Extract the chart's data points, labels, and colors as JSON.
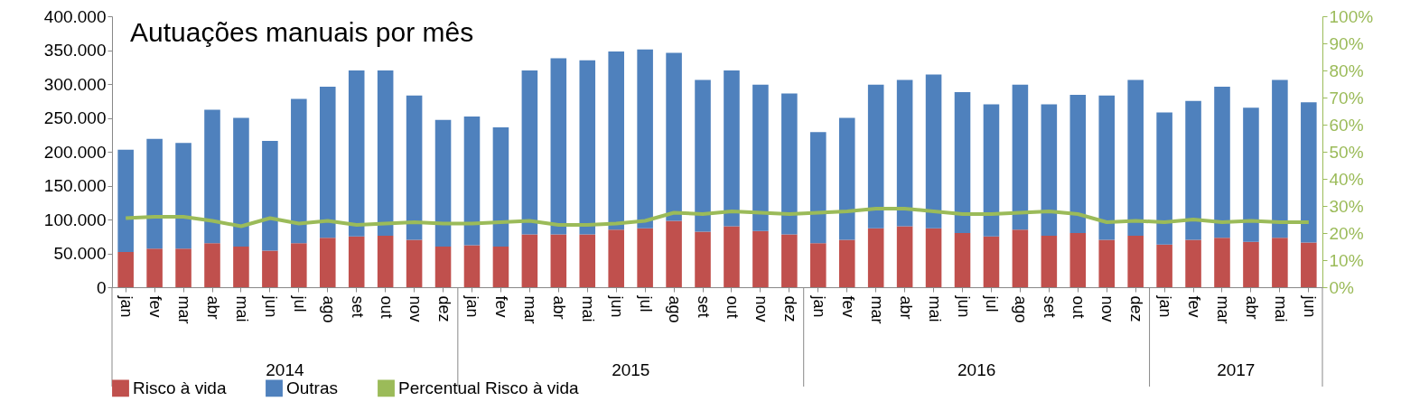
{
  "chart_data": {
    "type": "bar",
    "stacked": true,
    "title": "Autuações manuais por mês",
    "categories": [
      "jan",
      "fev",
      "mar",
      "abr",
      "mai",
      "jun",
      "jul",
      "ago",
      "set",
      "out",
      "nov",
      "dez",
      "jan",
      "fev",
      "mar",
      "abr",
      "mai",
      "jun",
      "jul",
      "ago",
      "set",
      "out",
      "nov",
      "dez",
      "jan",
      "fev",
      "mar",
      "abr",
      "mai",
      "jun",
      "jul",
      "ago",
      "set",
      "out",
      "nov",
      "dez",
      "jan",
      "fev",
      "mar",
      "abr",
      "mai",
      "jun"
    ],
    "annotations": [
      "2014",
      "2015",
      "2016",
      "2017"
    ],
    "series": [
      {
        "name": "Risco à vida",
        "color": "#c0504d",
        "values": [
          52000,
          57000,
          57000,
          65000,
          60000,
          54000,
          65000,
          73000,
          75000,
          76000,
          70000,
          60000,
          62000,
          60000,
          78000,
          78000,
          78000,
          85000,
          87000,
          98000,
          82000,
          90000,
          83000,
          78000,
          65000,
          70000,
          87000,
          90000,
          87000,
          80000,
          75000,
          85000,
          76000,
          80000,
          70000,
          76000,
          63000,
          70000,
          73000,
          67000,
          73000,
          66000
        ]
      },
      {
        "name": "Outras",
        "color": "#4f81bd",
        "values": [
          151000,
          162000,
          156000,
          197000,
          190000,
          162000,
          213000,
          223000,
          245000,
          244000,
          213000,
          187000,
          190000,
          176000,
          242000,
          260000,
          257000,
          263000,
          264000,
          248000,
          224000,
          230000,
          216000,
          208000,
          164000,
          180000,
          212000,
          216000,
          227000,
          208000,
          195000,
          214000,
          194000,
          204000,
          213000,
          230000,
          195000,
          205000,
          223000,
          198000,
          233000,
          207000
        ]
      },
      {
        "name": "Percentual Risco à vida",
        "type": "line",
        "axis": "y2",
        "color": "#9bbb59",
        "values": [
          25.5,
          26,
          26,
          24.5,
          22.5,
          25.5,
          23.5,
          24.5,
          23,
          23.5,
          24,
          23.5,
          23.5,
          24,
          24.5,
          23,
          23,
          23.5,
          24.5,
          27.5,
          27,
          28,
          27.5,
          27,
          27.5,
          28,
          29,
          29,
          28,
          27,
          27,
          27.5,
          28,
          27,
          24,
          24.5,
          24,
          25,
          24,
          24.5,
          24,
          24
        ]
      }
    ],
    "ylim": [
      0,
      400000
    ],
    "yticks": [
      {
        "value": 0,
        "label": "0"
      },
      {
        "value": 50000,
        "label": "50.000"
      },
      {
        "value": 100000,
        "label": "100.000"
      },
      {
        "value": 150000,
        "label": "150.000"
      },
      {
        "value": 200000,
        "label": "200.000"
      },
      {
        "value": 250000,
        "label": "250.000"
      },
      {
        "value": 300000,
        "label": "300.000"
      },
      {
        "value": 350000,
        "label": "350.000"
      },
      {
        "value": 400000,
        "label": "400.000"
      }
    ],
    "y2lim": [
      0,
      100
    ],
    "y2ticks": [
      {
        "value": 0,
        "label": "0%"
      },
      {
        "value": 10,
        "label": "10%"
      },
      {
        "value": 20,
        "label": "20%"
      },
      {
        "value": 30,
        "label": "30%"
      },
      {
        "value": 40,
        "label": "40%"
      },
      {
        "value": 50,
        "label": "50%"
      },
      {
        "value": 60,
        "label": "60%"
      },
      {
        "value": 70,
        "label": "70%"
      },
      {
        "value": 80,
        "label": "80%"
      },
      {
        "value": 90,
        "label": "90%"
      },
      {
        "value": 100,
        "label": "100%"
      }
    ],
    "grid": false,
    "legend": "bottom",
    "line_style": "solid",
    "marker": "none"
  }
}
